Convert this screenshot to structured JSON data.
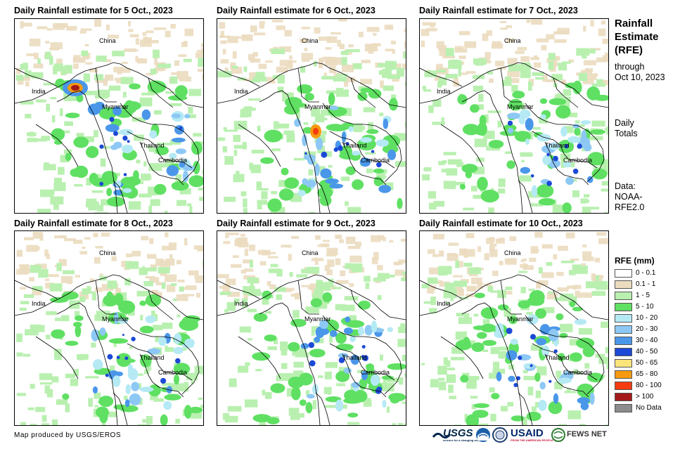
{
  "panels": [
    {
      "title": "Daily Rainfall estimate for 5 Oct., 2023"
    },
    {
      "title": "Daily Rainfall estimate for 6 Oct., 2023"
    },
    {
      "title": "Daily Rainfall estimate for 7 Oct., 2023"
    },
    {
      "title": "Daily Rainfall estimate for 8 Oct., 2023"
    },
    {
      "title": "Daily Rainfall estimate for 9 Oct., 2023"
    },
    {
      "title": "Daily Rainfall estimate for 10 Oct., 2023"
    }
  ],
  "map_labels": {
    "china": "China",
    "india": "India",
    "myanmar": "Myanmar",
    "thailand": "Thailand",
    "cambodia": "Cambodia"
  },
  "sidebar": {
    "title_line1": "Rainfall",
    "title_line2": "Estimate",
    "title_line3": "(RFE)",
    "through": "through",
    "date": "Oct 10, 2023",
    "daily": "Daily",
    "totals": "Totals",
    "data_label": "Data:",
    "data_source1": "NOAA-",
    "data_source2": "RFE2.0"
  },
  "legend": {
    "title": "RFE (mm)",
    "items": [
      {
        "label": "0 - 0.1",
        "color": "#ffffff"
      },
      {
        "label": "0.1 - 1",
        "color": "#ebdcbf"
      },
      {
        "label": "1 - 5",
        "color": "#b9f0b0"
      },
      {
        "label": "5 - 10",
        "color": "#5fe063"
      },
      {
        "label": "10 - 20",
        "color": "#b5eaf5"
      },
      {
        "label": "20 - 30",
        "color": "#8dc8f5"
      },
      {
        "label": "30 - 40",
        "color": "#4a97ea"
      },
      {
        "label": "40 - 50",
        "color": "#1c49d6"
      },
      {
        "label": "50 - 65",
        "color": "#fbe57a"
      },
      {
        "label": "65 - 80",
        "color": "#f59a10"
      },
      {
        "label": "80 - 100",
        "color": "#f53b10"
      },
      {
        "label": "> 100",
        "color": "#a31a1a"
      },
      {
        "label": "No Data",
        "color": "#8c8c8c"
      }
    ]
  },
  "footer": {
    "credit": "Map produced by USGS/EROS",
    "usgs": "USGS",
    "usgs_tagline": "science for a changing world",
    "usaid": "USAID",
    "usaid_tagline": "FROM THE AMERICAN PEOPLE",
    "fewsnet": "FEWS NET"
  }
}
